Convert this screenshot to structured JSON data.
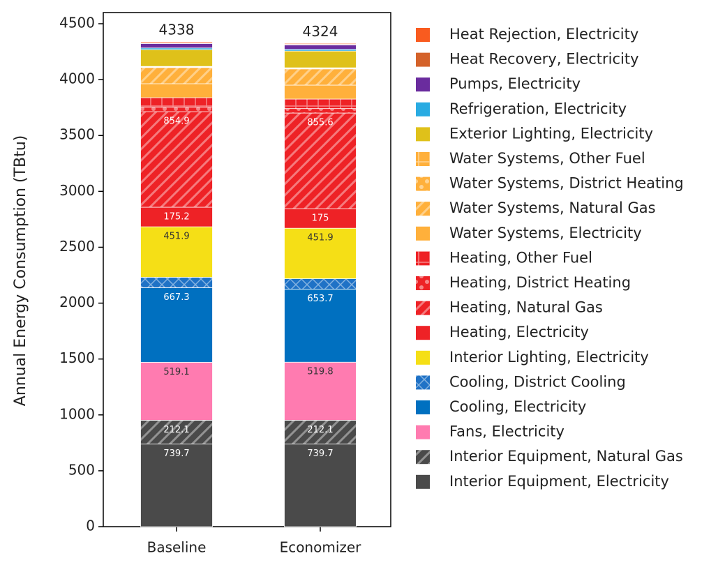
{
  "chart_data": {
    "type": "stacked_bar",
    "ylabel": "Annual Energy Consumption (TBtu)",
    "categories": [
      "Baseline",
      "Economizer"
    ],
    "totals": [
      4338,
      4324
    ],
    "ylim": [
      0,
      4600
    ],
    "yticks": [
      0,
      500,
      1000,
      1500,
      2000,
      2500,
      3000,
      3500,
      4000,
      4500
    ],
    "series": [
      {
        "name": "Interior Equipment, Electricity",
        "color": "#4a4a4a",
        "values": [
          739.7,
          739.7
        ],
        "show_labels": true
      },
      {
        "name": "Interior Equipment, Natural Gas",
        "color": "#4a4a4a",
        "pattern": "hatch",
        "values": [
          212.1,
          212.1
        ],
        "show_labels": true
      },
      {
        "name": "Fans, Electricity",
        "color": "#ff7bb0",
        "values": [
          519.1,
          519.8
        ],
        "show_labels": true
      },
      {
        "name": "Cooling, Electricity",
        "color": "#0070c0",
        "values": [
          667.3,
          653.7
        ],
        "show_labels": true
      },
      {
        "name": "Cooling, District Cooling",
        "color": "#1f72c6",
        "pattern": "cross",
        "values": [
          93,
          93
        ]
      },
      {
        "name": "Interior Lighting, Electricity",
        "color": "#f5df16",
        "values": [
          451.9,
          451.9
        ],
        "show_labels": true
      },
      {
        "name": "Heating, Electricity",
        "color": "#ee2226",
        "values": [
          175.2,
          175.0
        ],
        "show_labels": true
      },
      {
        "name": "Heating, Natural Gas",
        "color": "#ee2226",
        "pattern": "hatch",
        "values": [
          854.9,
          855.6
        ],
        "show_labels": true
      },
      {
        "name": "Heating, District Heating",
        "color": "#ee2226",
        "pattern": "dots",
        "values": [
          40,
          40
        ]
      },
      {
        "name": "Heating, Other Fuel",
        "color": "#ee2226",
        "pattern": "grid",
        "values": [
          85,
          85
        ]
      },
      {
        "name": "Water Systems, Electricity",
        "color": "#ffb03b",
        "values": [
          125,
          125
        ]
      },
      {
        "name": "Water Systems, Natural Gas",
        "color": "#ffb03b",
        "pattern": "hatch",
        "values": [
          145,
          145
        ]
      },
      {
        "name": "Water Systems, District Heating",
        "color": "#ffb03b",
        "pattern": "dots",
        "values": [
          5,
          5
        ]
      },
      {
        "name": "Water Systems, Other Fuel",
        "color": "#ffb03b",
        "pattern": "grid",
        "values": [
          5,
          5
        ]
      },
      {
        "name": "Exterior Lighting, Electricity",
        "color": "#dfc11a",
        "values": [
          150,
          150
        ]
      },
      {
        "name": "Refrigeration, Electricity",
        "color": "#29abe2",
        "values": [
          15,
          15
        ]
      },
      {
        "name": "Pumps, Electricity",
        "color": "#6a2c9e",
        "values": [
          40,
          40
        ]
      },
      {
        "name": "Heat Recovery, Electricity",
        "color": "#d4622a",
        "values": [
          5,
          5
        ]
      },
      {
        "name": "Heat Rejection, Electricity",
        "color": "#f95b1f",
        "values": [
          10,
          8
        ]
      }
    ]
  }
}
